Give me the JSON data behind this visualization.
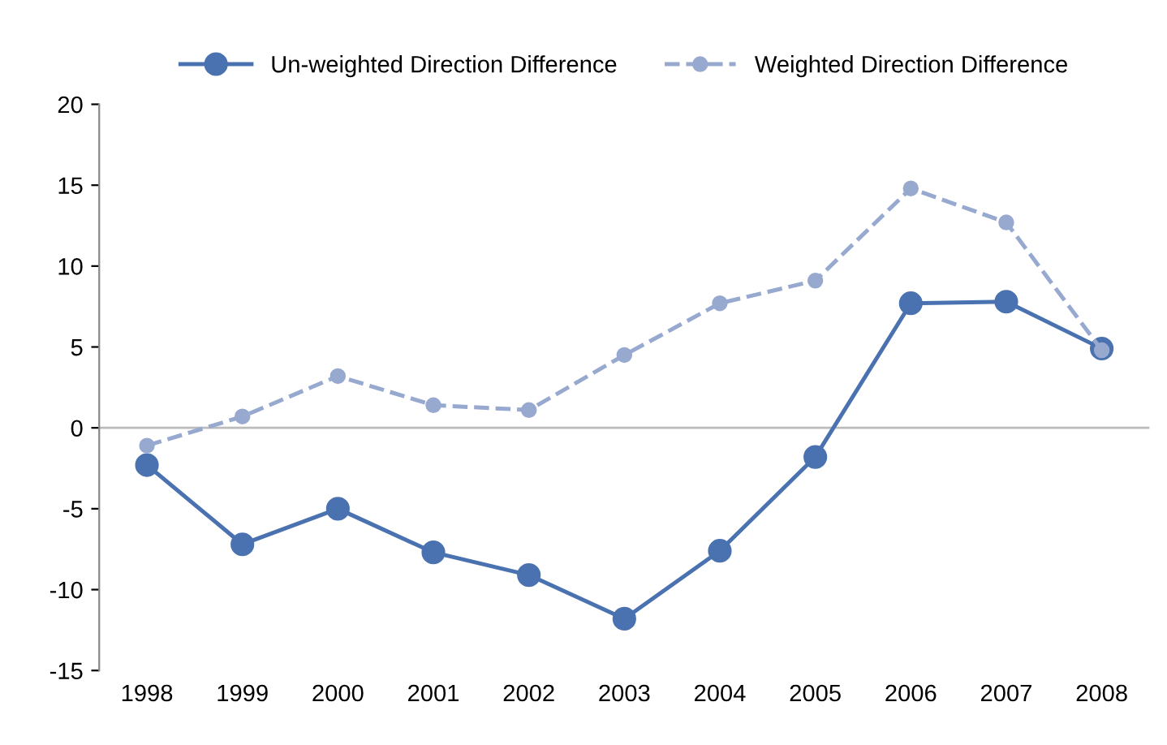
{
  "chart_data": {
    "type": "line",
    "categories": [
      "1998",
      "1999",
      "2000",
      "2001",
      "2002",
      "2003",
      "2004",
      "2005",
      "2006",
      "2007",
      "2008"
    ],
    "series": [
      {
        "name": "Un-weighted Direction Difference",
        "color": "#4a72b0",
        "line_style": "solid",
        "values": [
          -2.3,
          -7.2,
          -5.0,
          -7.7,
          -9.1,
          -11.8,
          -7.6,
          -1.8,
          7.7,
          7.8,
          4.9
        ]
      },
      {
        "name": "Weighted Direction Difference",
        "color": "#98a9d0",
        "line_style": "dashed",
        "values": [
          -1.1,
          0.7,
          3.2,
          1.4,
          1.1,
          4.5,
          7.7,
          9.1,
          14.8,
          12.7,
          4.8
        ]
      }
    ],
    "ylim": [
      -15,
      20
    ],
    "yticks": [
      -15,
      -10,
      -5,
      0,
      5,
      10,
      15,
      20
    ],
    "ref_lines": [
      {
        "axis": "y",
        "value": 0,
        "color": "#bbbbbb"
      }
    ],
    "marker": "circle",
    "legend": "top",
    "grid": false
  }
}
